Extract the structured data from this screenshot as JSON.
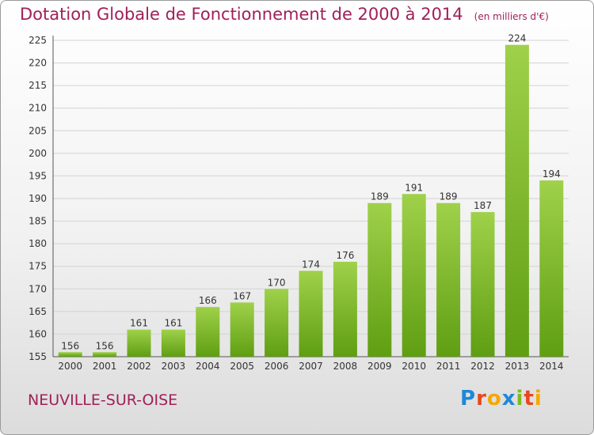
{
  "header": {
    "title": "Dotation Globale de Fonctionnement de 2000 à 2014",
    "unit": "(en milliers d'€)"
  },
  "commune": "NEUVILLE-SUR-OISE",
  "logo": {
    "letters": [
      "P",
      "r",
      "o",
      "x",
      "i",
      "t",
      "i"
    ],
    "colors": [
      "#1e88d6",
      "#e8481c",
      "#f5a800",
      "#1e88d6",
      "#7dbb1c",
      "#e8481c",
      "#f5a800"
    ]
  },
  "chart_data": {
    "type": "bar",
    "categories": [
      "2000",
      "2001",
      "2002",
      "2003",
      "2004",
      "2005",
      "2006",
      "2007",
      "2008",
      "2009",
      "2010",
      "2011",
      "2012",
      "2013",
      "2014"
    ],
    "values": [
      156,
      156,
      161,
      161,
      166,
      167,
      170,
      174,
      176,
      189,
      191,
      189,
      187,
      224,
      194
    ],
    "ylim": [
      155,
      225
    ],
    "yticks": [
      155,
      160,
      165,
      170,
      175,
      180,
      185,
      190,
      195,
      200,
      205,
      210,
      215,
      220,
      225
    ],
    "grid": true,
    "colors": {
      "bar_light": "#9fd14a",
      "bar_dark": "#5f9e12",
      "title": "#a0205a"
    }
  }
}
